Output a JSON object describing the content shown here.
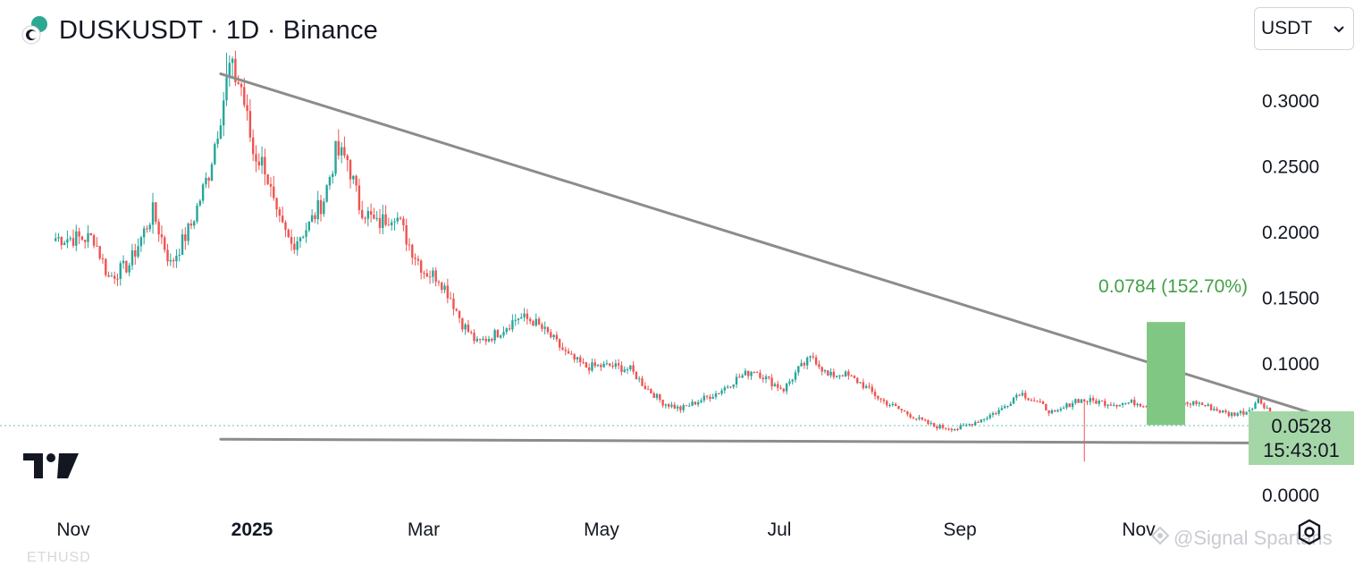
{
  "header": {
    "title": "DUSKUSDT · 1D · Binance",
    "logo_icon": "dusk-coin-logo-icon"
  },
  "unit_select": {
    "value": "USDT",
    "icon": "chevron-down-icon"
  },
  "price_label": {
    "price": "0.0528",
    "countdown": "15:43:01"
  },
  "measure_label": "0.0784 (152.70%)",
  "watermark": {
    "icon": "signal-spartans-logo-icon",
    "text": "@Signal Spartans"
  },
  "footer_ghost": "ETHUSD",
  "colors": {
    "up": "#26a69a",
    "down": "#ef5350",
    "trendline": "#8c8c8c",
    "measure_fill": "#81c784",
    "measure_text": "#43a047",
    "price_box": "#a5d6a7"
  },
  "chart_data": {
    "type": "candlestick",
    "symbol": "DUSKUSDT",
    "interval": "1D",
    "exchange": "Binance",
    "y_axis": {
      "ticks": [
        "0.3000",
        "0.2500",
        "0.2000",
        "0.1500",
        "0.1000",
        "0.0000"
      ],
      "ylim": [
        0.0,
        0.34
      ]
    },
    "x_axis": {
      "ticks": [
        "Nov",
        "2025",
        "Mar",
        "May",
        "Jul",
        "Sep",
        "Nov"
      ]
    },
    "last_price": 0.0528,
    "price_path": [
      [
        "2024-10-26",
        0.195
      ],
      [
        "2024-11-08",
        0.195
      ],
      [
        "2024-11-13",
        0.165
      ],
      [
        "2024-11-20",
        0.175
      ],
      [
        "2024-11-28",
        0.215
      ],
      [
        "2024-12-04",
        0.175
      ],
      [
        "2024-12-11",
        0.205
      ],
      [
        "2024-12-17",
        0.245
      ],
      [
        "2024-12-21",
        0.29
      ],
      [
        "2024-12-24",
        0.325
      ],
      [
        "2024-12-28",
        0.31
      ],
      [
        "2025-01-01",
        0.26
      ],
      [
        "2025-01-05",
        0.25
      ],
      [
        "2025-01-09",
        0.21
      ],
      [
        "2025-01-14",
        0.19
      ],
      [
        "2025-01-20",
        0.205
      ],
      [
        "2025-01-25",
        0.225
      ],
      [
        "2025-01-29",
        0.26
      ],
      [
        "2025-02-02",
        0.255
      ],
      [
        "2025-02-06",
        0.22
      ],
      [
        "2025-02-12",
        0.205
      ],
      [
        "2025-02-18",
        0.215
      ],
      [
        "2025-02-23",
        0.19
      ],
      [
        "2025-02-28",
        0.17
      ],
      [
        "2025-03-05",
        0.165
      ],
      [
        "2025-03-09",
        0.15
      ],
      [
        "2025-03-13",
        0.13
      ],
      [
        "2025-03-18",
        0.115
      ],
      [
        "2025-03-25",
        0.123
      ],
      [
        "2025-04-01",
        0.135
      ],
      [
        "2025-04-06",
        0.132
      ],
      [
        "2025-04-12",
        0.12
      ],
      [
        "2025-04-18",
        0.105
      ],
      [
        "2025-04-24",
        0.097
      ],
      [
        "2025-05-02",
        0.098
      ],
      [
        "2025-05-09",
        0.095
      ],
      [
        "2025-05-14",
        0.082
      ],
      [
        "2025-05-20",
        0.07
      ],
      [
        "2025-05-26",
        0.065
      ],
      [
        "2025-06-02",
        0.072
      ],
      [
        "2025-06-08",
        0.078
      ],
      [
        "2025-06-14",
        0.088
      ],
      [
        "2025-06-20",
        0.095
      ],
      [
        "2025-06-26",
        0.085
      ],
      [
        "2025-06-30",
        0.08
      ],
      [
        "2025-07-05",
        0.095
      ],
      [
        "2025-07-10",
        0.105
      ],
      [
        "2025-07-15",
        0.09
      ],
      [
        "2025-07-20",
        0.092
      ],
      [
        "2025-07-26",
        0.085
      ],
      [
        "2025-08-02",
        0.072
      ],
      [
        "2025-08-08",
        0.065
      ],
      [
        "2025-08-14",
        0.058
      ],
      [
        "2025-08-20",
        0.052
      ],
      [
        "2025-08-28",
        0.05
      ],
      [
        "2025-09-05",
        0.057
      ],
      [
        "2025-09-12",
        0.065
      ],
      [
        "2025-09-18",
        0.078
      ],
      [
        "2025-09-24",
        0.07
      ],
      [
        "2025-09-30",
        0.061
      ],
      [
        "2025-10-07",
        0.072
      ],
      [
        "2025-10-13",
        0.071
      ],
      [
        "2025-10-20",
        0.069
      ],
      [
        "2025-10-27",
        0.07
      ],
      [
        "2025-11-03",
        0.067
      ],
      [
        "2025-11-10",
        0.068
      ],
      [
        "2025-11-17",
        0.07
      ],
      [
        "2025-11-22",
        0.066
      ],
      [
        "2025-11-28",
        0.061
      ],
      [
        "2025-12-04",
        0.063
      ],
      [
        "2025-12-08",
        0.072
      ],
      [
        "2025-12-11",
        0.066
      ],
      [
        "2025-12-14",
        0.052
      ],
      [
        "2025-12-18",
        0.058
      ],
      [
        "2025-12-23",
        0.054
      ],
      [
        "2025-12-28",
        0.052
      ],
      [
        "2026-01-02",
        0.049
      ],
      [
        "2026-01-05",
        0.0528
      ]
    ],
    "trendlines": [
      {
        "name": "descending-resistance",
        "from": [
          "2024-12-21",
          0.32
        ],
        "to": [
          "2026-01-05",
          0.055
        ]
      },
      {
        "name": "horizontal-support",
        "from": [
          "2024-12-21",
          0.042
        ],
        "to": [
          "2026-01-04",
          0.039
        ]
      }
    ],
    "measure_box": {
      "from_price": 0.0528,
      "to_price": 0.1312,
      "change": 0.0784,
      "change_pct": 152.7
    }
  }
}
